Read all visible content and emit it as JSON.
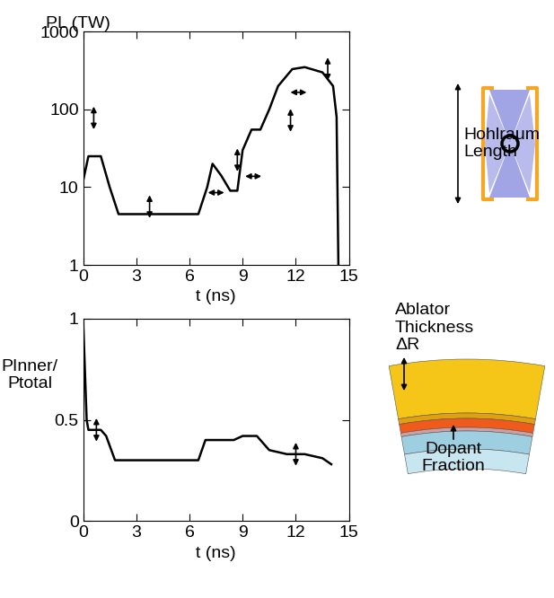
{
  "chart_data": [
    {
      "type": "line",
      "title": "",
      "ylabel": "PL (TW)",
      "xlabel": "t (ns)",
      "log": "y",
      "color": "#000000",
      "x": [
        0,
        0.3,
        1.0,
        1.5,
        2.0,
        6.5,
        7.0,
        7.3,
        7.8,
        8.3,
        8.7,
        9.0,
        9.5,
        10.0,
        10.5,
        11.0,
        11.8,
        12.5,
        13.5,
        14.1,
        14.3,
        14.4
      ],
      "values": [
        12,
        25,
        25,
        10,
        4.5,
        4.5,
        10,
        20,
        14,
        9,
        9,
        30,
        55,
        55,
        100,
        200,
        330,
        350,
        300,
        200,
        80,
        1
      ],
      "xlim": [
        0,
        15
      ],
      "xticks": [
        0,
        3,
        6,
        9,
        12,
        15
      ],
      "ylim": [
        1,
        1000
      ],
      "yticks": [
        1,
        10,
        100,
        1000
      ],
      "annotations": [
        "Hohlraum Length"
      ]
    },
    {
      "type": "line",
      "title": "",
      "ylabel": "PInner/ Ptotal",
      "xlabel": "t (ns)",
      "color": "#000000",
      "x": [
        0,
        0.2,
        0.3,
        1.0,
        1.3,
        1.8,
        6.5,
        6.9,
        8.5,
        9.0,
        9.8,
        10.5,
        11.5,
        12.5,
        13.5,
        14.0
      ],
      "values": [
        1,
        0.5,
        0.45,
        0.45,
        0.42,
        0.3,
        0.3,
        0.4,
        0.4,
        0.42,
        0.42,
        0.35,
        0.33,
        0.33,
        0.31,
        0.28
      ],
      "xlim": [
        0,
        15
      ],
      "xticks": [
        0,
        3,
        6,
        9,
        12,
        15
      ],
      "ylim": [
        0,
        1
      ],
      "yticks": [
        0,
        0.5,
        1
      ],
      "annotations": [
        "Ablator Thickness ΔR",
        "Dopant Fraction"
      ]
    }
  ]
}
